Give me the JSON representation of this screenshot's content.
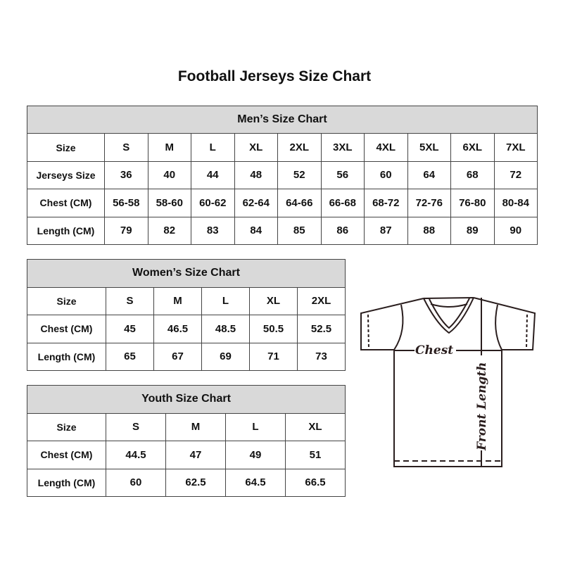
{
  "title": "Football Jerseys Size Chart",
  "men": {
    "caption": "Men’s Size Chart",
    "header": [
      "Size",
      "S",
      "M",
      "L",
      "XL",
      "2XL",
      "3XL",
      "4XL",
      "5XL",
      "6XL",
      "7XL"
    ],
    "rows": [
      [
        "Jerseys Size",
        "36",
        "40",
        "44",
        "48",
        "52",
        "56",
        "60",
        "64",
        "68",
        "72"
      ],
      [
        "Chest (CM)",
        "56-58",
        "58-60",
        "60-62",
        "62-64",
        "64-66",
        "66-68",
        "68-72",
        "72-76",
        "76-80",
        "80-84"
      ],
      [
        "Length (CM)",
        "79",
        "82",
        "83",
        "84",
        "85",
        "86",
        "87",
        "88",
        "89",
        "90"
      ]
    ]
  },
  "women": {
    "caption": "Women’s Size Chart",
    "header": [
      "Size",
      "S",
      "M",
      "L",
      "XL",
      "2XL"
    ],
    "rows": [
      [
        "Chest (CM)",
        "45",
        "46.5",
        "48.5",
        "50.5",
        "52.5"
      ],
      [
        "Length (CM)",
        "65",
        "67",
        "69",
        "71",
        "73"
      ]
    ]
  },
  "youth": {
    "caption": "Youth Size Chart",
    "header": [
      "Size",
      "S",
      "M",
      "L",
      "XL"
    ],
    "rows": [
      [
        "Chest (CM)",
        "44.5",
        "47",
        "49",
        "51"
      ],
      [
        "Length (CM)",
        "60",
        "62.5",
        "64.5",
        "66.5"
      ]
    ]
  },
  "illustration": {
    "icon": "t-shirt-icon",
    "chest_label": "Chest",
    "length_label": "Front Length"
  },
  "colors": {
    "header_bg": "#d9d9d9",
    "border": "#444444"
  }
}
